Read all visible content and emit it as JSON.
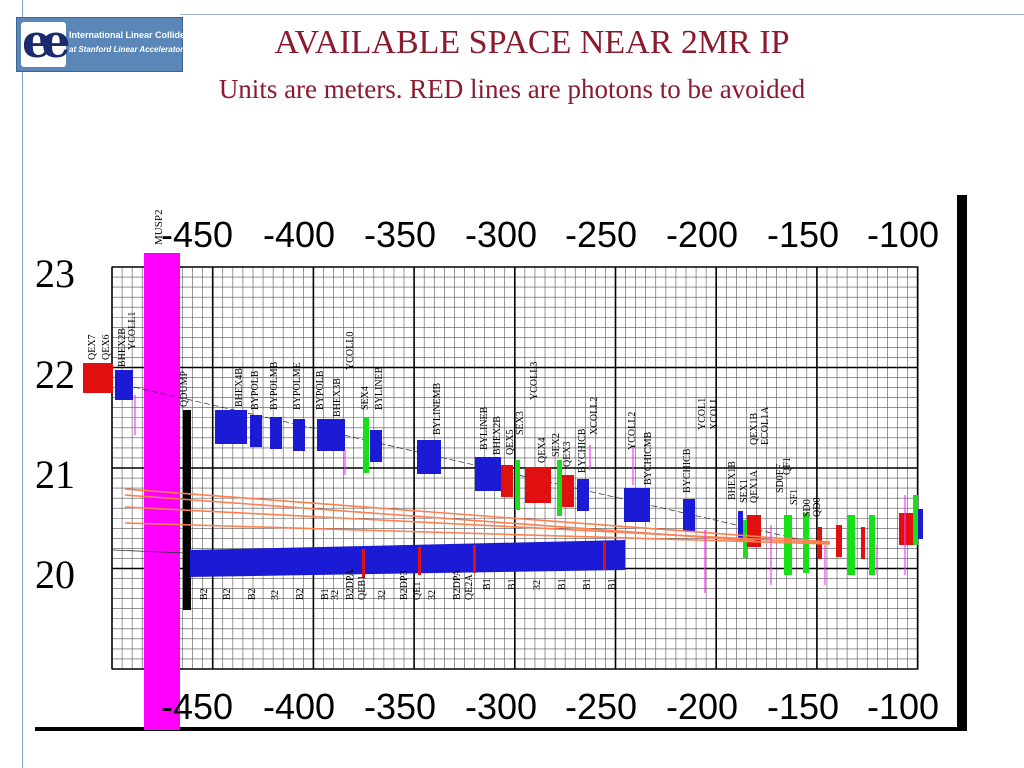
{
  "logo": {
    "line1": "International Linear Collider",
    "line2": "at Stanford Linear Accelerator Center"
  },
  "title": "AVAILABLE SPACE NEAR 2MR IP",
  "subtitle": "Units are meters. RED lines are photons to be avoided",
  "diagram": {
    "x_ticks": [
      "-450",
      "-400",
      "-350",
      "-300",
      "-250",
      "-200",
      "-150",
      "-100"
    ],
    "y_ticks": [
      "23",
      "22",
      "21",
      "20"
    ],
    "vertical_labels": [
      "MUSP2",
      "QEX7",
      "QEX6",
      "BHEX2B",
      "YCOLL1",
      "QDUMP",
      "BHEX4B",
      "BYPOLB",
      "BYPOLMB",
      "BYPOLME",
      "BYPOLB",
      "BHEX3B",
      "YCOLL0",
      "SEX4",
      "BYLINEB",
      "BYLINEMB",
      "BYLINEB",
      "BHEX2B",
      "QEX5",
      "SEX3",
      "YCOLL3",
      "QEX4",
      "SEX2",
      "QEX3",
      "BYCHICB",
      "XCOLL2",
      "YCOLL2",
      "BYCHICMB",
      "BYCHICB",
      "YCOL1",
      "XCOLL",
      "BHEX1B",
      "SEX1",
      "QEX1A",
      "QEX1B",
      "ECOL1A",
      "SD0FF",
      "SF1",
      "QF1",
      "SD0",
      "QD0",
      "B2",
      "B2",
      "B2",
      "32",
      "B2",
      "B1",
      "32",
      "B2DPA",
      "QEB1",
      "32",
      "B2DP3",
      "QE1",
      "32",
      "B2DPA",
      "QE2A",
      "B1",
      "B1",
      "32",
      "B1",
      "B1",
      "B1"
    ]
  },
  "colors": {
    "title": "#8b1a2e",
    "magnet_blue": "#1b1bd6",
    "magnet_red": "#e01010",
    "magnet_green": "#18e018",
    "photon_lines": "#ff7f50",
    "musp2_band": "#ff00ff"
  }
}
